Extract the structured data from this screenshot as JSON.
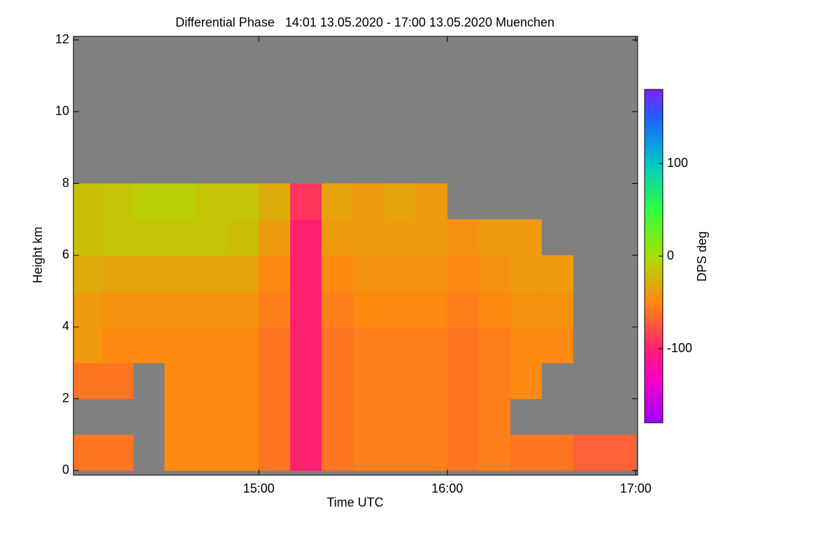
{
  "chart_data": {
    "type": "heatmap",
    "title": "Differential Phase   14:01 13.05.2020 - 17:00 13.05.2020 Muenchen",
    "xlabel": "Time UTC",
    "ylabel": "Height km",
    "colorbar_label": "DPS deg",
    "xlim": [
      14.0167,
      17.01
    ],
    "xticks": [
      {
        "value": 15,
        "label": "15:00"
      },
      {
        "value": 16,
        "label": "16:00"
      },
      {
        "value": 17,
        "label": "17:00"
      }
    ],
    "ylim": [
      -0.13,
      12.1
    ],
    "yticks": [
      0,
      2,
      4,
      6,
      8,
      10,
      12
    ],
    "clim": [
      -180,
      180
    ],
    "cticks": [
      -100,
      0,
      100
    ],
    "background": "#808080",
    "colorscale": [
      [
        -180,
        "#a000ff"
      ],
      [
        -130,
        "#ff00c0"
      ],
      [
        -100,
        "#ff2070"
      ],
      [
        -50,
        "#ff8a10"
      ],
      [
        0,
        "#a8e000"
      ],
      [
        50,
        "#30ff40"
      ],
      [
        100,
        "#00c8c8"
      ],
      [
        150,
        "#2060ff"
      ],
      [
        180,
        "#8020ff"
      ]
    ],
    "x_edges": [
      14,
      14.1667,
      14.3333,
      14.5,
      14.6667,
      14.8333,
      15,
      15.1667,
      15.3333,
      15.5,
      15.6667,
      15.8333,
      16,
      16.1667,
      16.3333,
      16.5,
      16.6667,
      16.8333,
      17
    ],
    "y_edges": [
      0,
      1,
      2,
      3,
      4,
      5,
      6,
      7,
      8,
      9,
      10,
      11,
      12
    ],
    "z": [
      [
        -60,
        -60,
        null,
        -50,
        -50,
        -50,
        -60,
        -100,
        -60,
        -55,
        -55,
        -55,
        -60,
        -55,
        -60,
        -60,
        -70,
        -70
      ],
      [
        null,
        null,
        null,
        -50,
        -50,
        -50,
        -60,
        -100,
        -60,
        -55,
        -55,
        -55,
        -60,
        -55,
        null,
        null,
        null,
        null
      ],
      [
        -60,
        -60,
        null,
        -50,
        -50,
        -50,
        -60,
        -100,
        -60,
        -55,
        -55,
        -55,
        -60,
        -55,
        -50,
        null,
        null,
        null
      ],
      [
        -40,
        -50,
        -50,
        -50,
        -50,
        -50,
        -60,
        -100,
        -60,
        -55,
        -55,
        -55,
        -60,
        -55,
        -50,
        -50,
        null,
        null
      ],
      [
        -40,
        -45,
        -45,
        -45,
        -45,
        -45,
        -55,
        -100,
        -55,
        -50,
        -50,
        -50,
        -55,
        -50,
        -45,
        -45,
        null,
        null
      ],
      [
        -30,
        -35,
        -35,
        -35,
        -35,
        -35,
        -50,
        -100,
        -50,
        -45,
        -45,
        -45,
        -50,
        -45,
        -40,
        -40,
        null,
        null
      ],
      [
        -20,
        -15,
        -15,
        -15,
        -15,
        -20,
        -40,
        -100,
        -40,
        -40,
        -40,
        -40,
        -45,
        -40,
        -40,
        null,
        null,
        null
      ],
      [
        -20,
        -15,
        -10,
        -10,
        -15,
        -15,
        -30,
        -90,
        -35,
        -40,
        -35,
        -40,
        null,
        null,
        null,
        null,
        null,
        null
      ],
      [
        null,
        null,
        null,
        null,
        null,
        null,
        null,
        null,
        null,
        null,
        null,
        null,
        null,
        null,
        null,
        null,
        null,
        null
      ],
      [
        null,
        null,
        null,
        null,
        null,
        null,
        null,
        null,
        null,
        null,
        null,
        null,
        null,
        null,
        null,
        null,
        null,
        null
      ],
      [
        null,
        null,
        null,
        null,
        null,
        null,
        null,
        null,
        null,
        null,
        null,
        null,
        null,
        null,
        null,
        null,
        null,
        null
      ],
      [
        null,
        null,
        null,
        null,
        null,
        null,
        null,
        null,
        null,
        null,
        null,
        null,
        null,
        null,
        null,
        null,
        null,
        null
      ]
    ]
  }
}
